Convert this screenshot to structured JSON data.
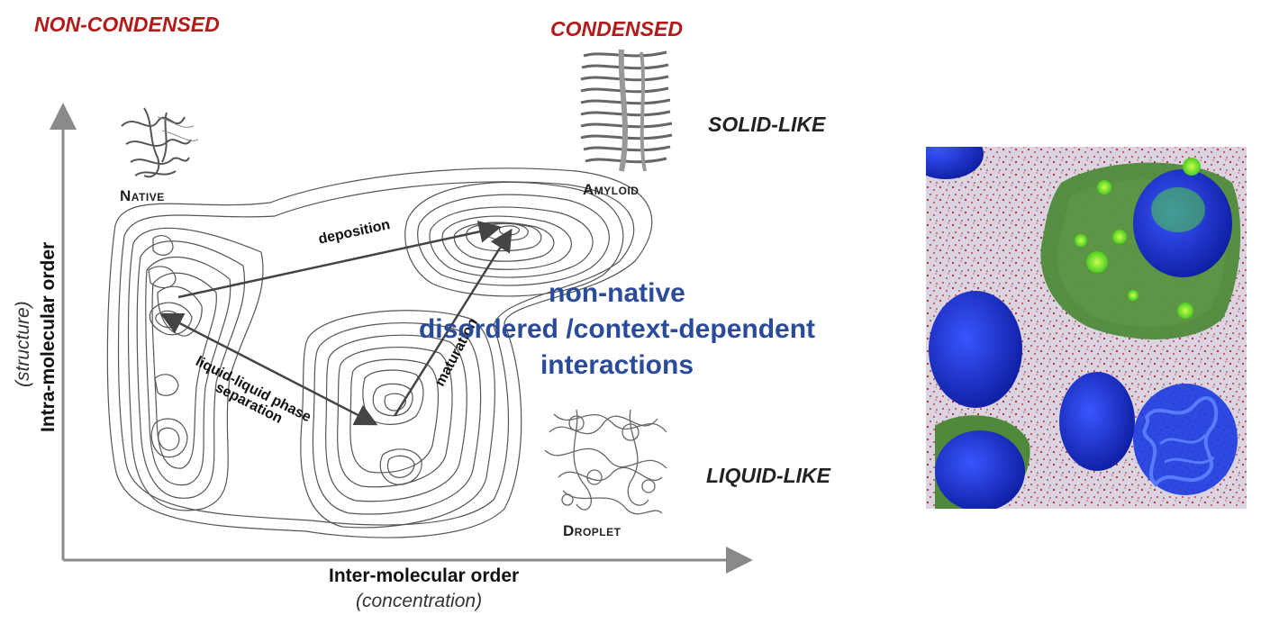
{
  "headers": {
    "non_condensed": "NON-CONDENSED",
    "condensed": "CONDENSED"
  },
  "states": {
    "solid": "SOLID-LIKE",
    "liquid": "LIQUID-LIKE"
  },
  "species": {
    "native": "Native",
    "amyloid": "Amyloid",
    "droplet": "Droplet"
  },
  "axes": {
    "x_label": "Inter-molecular order",
    "x_sub": "(concentration)",
    "y_label": "Intra-molecular order",
    "y_sub": "(structure)"
  },
  "transitions": {
    "deposition": "deposition",
    "maturation": "maturation",
    "llps_line1": "liquid-liquid phase",
    "llps_line2": "separation"
  },
  "center_text": {
    "line1": "non-native",
    "line2": "disordered /context-dependent",
    "line3": "interactions"
  },
  "colors": {
    "header_red": "#b31b1b",
    "center_blue": "#2a4a9a",
    "contour": "#555555",
    "axis": "#8a8a8a",
    "nucleus_blue": "#1a2fd0",
    "cytoplasm_green": "#4a8a2a",
    "speckle_red": "#c02030"
  }
}
